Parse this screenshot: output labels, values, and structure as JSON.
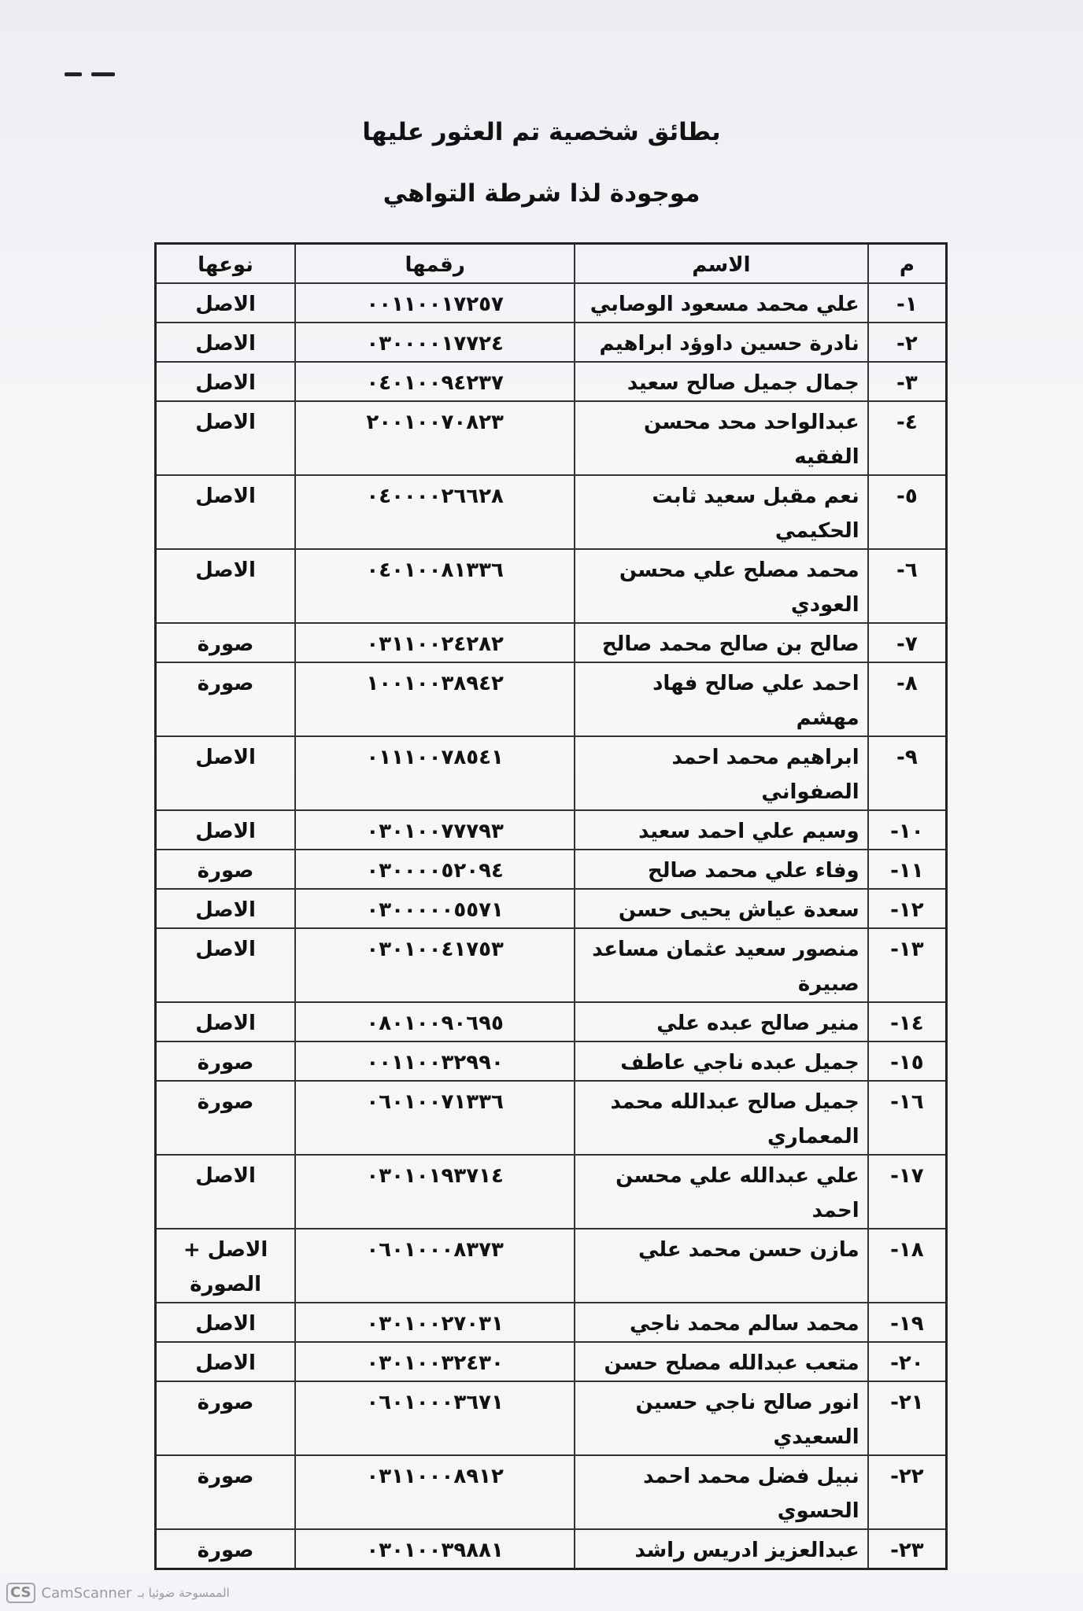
{
  "header": {
    "title": "بطائق شخصية تم العثور عليها",
    "subtitle": "موجودة لذا شرطة التواهي"
  },
  "table": {
    "columns": {
      "index": "م",
      "name": "الاسم",
      "number": "رقمها",
      "type": "نوعها"
    },
    "rows": [
      {
        "index": "١-",
        "name": "علي محمد مسعود الوصابي",
        "number": "٠٠١١٠٠١٧٢٥٧",
        "type": "الاصل"
      },
      {
        "index": "٢-",
        "name": "نادرة حسين داوؤد ابراهيم",
        "number": "٠٣٠٠٠٠١٧٧٢٤",
        "type": "الاصل"
      },
      {
        "index": "٣-",
        "name": "جمال جميل صالح سعيد",
        "number": "٠٤٠١٠٠٩٤٢٣٧",
        "type": "الاصل"
      },
      {
        "index": "٤-",
        "name": "عبدالواحد محد محسن الفقيه",
        "number": "٢٠٠١٠٠٧٠٨٢٣",
        "type": "الاصل"
      },
      {
        "index": "٥-",
        "name": "نعم مقبل سعيد ثابت الحكيمي",
        "number": "٠٤٠٠٠٠٢٦٦٢٨",
        "type": "الاصل"
      },
      {
        "index": "٦-",
        "name": "محمد مصلح علي محسن العودي",
        "number": "٠٤٠١٠٠٨١٣٣٦",
        "type": "الاصل"
      },
      {
        "index": "٧-",
        "name": "صالح بن صالح محمد صالح",
        "number": "٠٣١١٠٠٢٤٢٨٢",
        "type": "صورة"
      },
      {
        "index": "٨-",
        "name": "احمد علي صالح فهاد مهشم",
        "number": "١٠٠١٠٠٣٨٩٤٢",
        "type": "صورة"
      },
      {
        "index": "٩-",
        "name": "ابراهيم محمد احمد الصفواني",
        "number": "٠١١١٠٠٧٨٥٤١",
        "type": "الاصل"
      },
      {
        "index": "١٠-",
        "name": "وسيم علي احمد سعيد",
        "number": "٠٣٠١٠٠٧٧٧٩٣",
        "type": "الاصل"
      },
      {
        "index": "١١-",
        "name": "وفاء علي محمد صالح",
        "number": "٠٣٠٠٠٠٥٢٠٩٤",
        "type": "صورة"
      },
      {
        "index": "١٢-",
        "name": "سعدة عياش يحيى حسن",
        "number": "٠٣٠٠٠٠٠٥٥٧١",
        "type": "الاصل"
      },
      {
        "index": "١٣-",
        "name": "منصور سعيد عثمان مساعد صبيرة",
        "number": "٠٣٠١٠٠٤١٧٥٣",
        "type": "الاصل"
      },
      {
        "index": "١٤-",
        "name": "منير صالح عبده علي",
        "number": "٠٨٠١٠٠٩٠٦٩٥",
        "type": "الاصل"
      },
      {
        "index": "١٥-",
        "name": "جميل عبده ناجي عاطف",
        "number": "٠٠١١٠٠٣٢٩٩٠",
        "type": "صورة"
      },
      {
        "index": "١٦-",
        "name": "جميل صالح عبدالله محمد المعماري",
        "number": "٠٦٠١٠٠٧١٣٣٦",
        "type": "صورة"
      },
      {
        "index": "١٧-",
        "name": "علي عبدالله علي محسن احمد",
        "number": "٠٣٠١٠١٩٣٧١٤",
        "type": "الاصل"
      },
      {
        "index": "١٨-",
        "name": "مازن حسن محمد علي",
        "number": "٠٦٠١٠٠٠٨٣٧٣",
        "type": "الاصل + الصورة"
      },
      {
        "index": "١٩-",
        "name": "محمد سالم محمد ناجي",
        "number": "٠٣٠١٠٠٢٧٠٣١",
        "type": "الاصل"
      },
      {
        "index": "٢٠-",
        "name": "متعب عبدالله مصلح حسن",
        "number": "٠٣٠١٠٠٣٢٤٣٠",
        "type": "الاصل"
      },
      {
        "index": "٢١-",
        "name": "انور صالح ناجي حسين السعيدي",
        "number": "٠٦٠١٠٠٠٣٦٧١",
        "type": "صورة"
      },
      {
        "index": "٢٢-",
        "name": "نبيل فضل محمد احمد الحسوي",
        "number": "٠٣١١٠٠٠٨٩١٢",
        "type": "صورة"
      },
      {
        "index": "٢٣-",
        "name": "عبدالعزيز ادريس راشد",
        "number": "٠٣٠١٠٠٣٩٨٨١",
        "type": "صورة"
      }
    ]
  },
  "footer": {
    "logo": "CS",
    "app": "CamScanner",
    "scanned_by": "الممسوحة ضوئيا بـ"
  }
}
